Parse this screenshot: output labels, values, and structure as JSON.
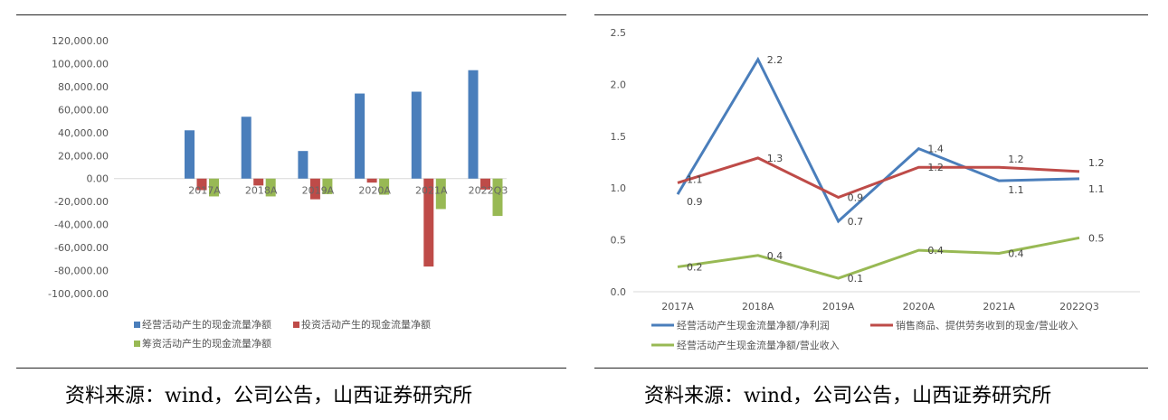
{
  "chart_data": [
    {
      "type": "bar",
      "categories": [
        "2017A",
        "2018A",
        "2019A",
        "2020A",
        "2021A",
        "2022Q3"
      ],
      "series": [
        {
          "name": "经营活动产生的现金流量净额",
          "color": "#4a7ebb",
          "values": [
            42000,
            53800,
            24000,
            74000,
            75600,
            94300
          ]
        },
        {
          "name": "投资活动产生的现金流量净额",
          "color": "#be4b48",
          "values": [
            -10000,
            -6000,
            -18000,
            -3500,
            -76500,
            -9500
          ]
        },
        {
          "name": "筹资活动产生的现金流量净额",
          "color": "#98b954",
          "values": [
            -15500,
            -15500,
            -13500,
            -14000,
            -26500,
            -32500
          ]
        }
      ],
      "ylim": [
        -100000,
        120000
      ],
      "yticks": [
        "120,000.00",
        "100,000.00",
        "80,000.00",
        "60,000.00",
        "40,000.00",
        "20,000.00",
        "0.00",
        "-20,000.00",
        "-40,000.00",
        "-60,000.00",
        "-80,000.00",
        "-100,000.00"
      ],
      "legend": "bottom",
      "grid": false
    },
    {
      "type": "line",
      "categories": [
        "2017A",
        "2018A",
        "2019A",
        "2020A",
        "2021A",
        "2022Q3"
      ],
      "series": [
        {
          "name": "经营活动产生现金流量净额/净利润",
          "color": "#4a7ebb",
          "values": [
            0.94,
            2.24,
            0.68,
            1.38,
            1.07,
            1.09
          ],
          "labels": [
            "0.9",
            "2.2",
            "0.7",
            "1.4",
            "1.1",
            "1.1"
          ]
        },
        {
          "name": "销售商品、提供劳务收到的现金/营业收入",
          "color": "#be4b48",
          "values": [
            1.05,
            1.29,
            0.91,
            1.2,
            1.2,
            1.16
          ],
          "labels": [
            "1.1",
            "1.3",
            "0.9",
            "1.2",
            "1.2",
            "1.2"
          ]
        },
        {
          "name": "经营活动产生现金流量净额/营业收入",
          "color": "#98b954",
          "values": [
            0.24,
            0.35,
            0.13,
            0.4,
            0.37,
            0.52
          ],
          "labels": [
            "0.2",
            "0.4",
            "0.1",
            "0.4",
            "0.4",
            "0.5"
          ]
        }
      ],
      "ylim": [
        0,
        2.5
      ],
      "yticks": [
        "0.0",
        "0.5",
        "1.0",
        "1.5",
        "2.0",
        "2.5"
      ],
      "legend": "bottom",
      "grid": false
    }
  ],
  "captions": [
    "资料来源：wind，公司公告，山西证券研究所",
    "资料来源：wind，公司公告，山西证券研究所"
  ]
}
